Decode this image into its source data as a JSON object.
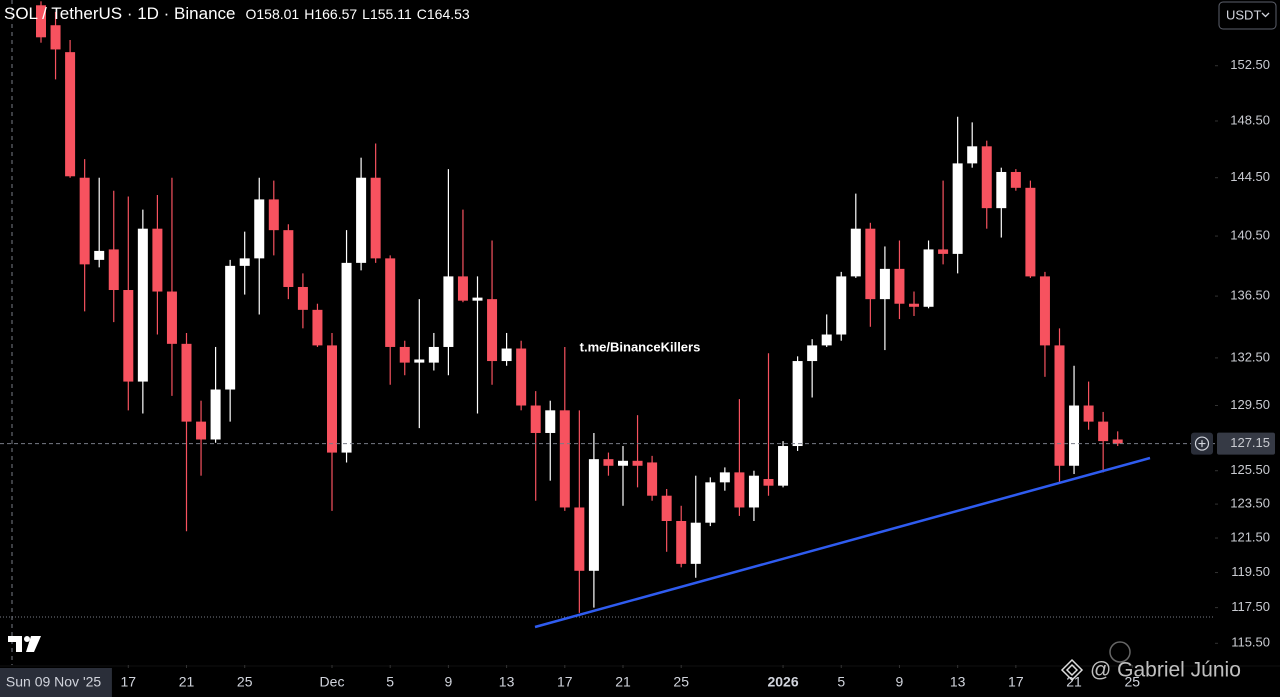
{
  "chart_data": {
    "type": "candlestick",
    "title": "SOL / TetherUS · 1D · Binance",
    "ohlc_legend": [
      {
        "label": "O",
        "value": "158.01"
      },
      {
        "label": "H",
        "value": "166.57"
      },
      {
        "label": "L",
        "value": "155.11"
      },
      {
        "label": "C",
        "value": "164.53"
      }
    ],
    "currency": "USDT",
    "watermark": "t.me/BinanceKillers",
    "credit": "@ Gabriel Júnio",
    "log_scale": true,
    "up_color": "#ffffff",
    "down_color": "#f7525f",
    "x": [
      "2025-11-11",
      "2025-11-12",
      "2025-11-13",
      "2025-11-14",
      "2025-11-15",
      "2025-11-16",
      "2025-11-17",
      "2025-11-18",
      "2025-11-19",
      "2025-11-20",
      "2025-11-21",
      "2025-11-22",
      "2025-11-23",
      "2025-11-24",
      "2025-11-25",
      "2025-11-26",
      "2025-11-27",
      "2025-11-28",
      "2025-11-29",
      "2025-11-30",
      "2025-12-01",
      "2025-12-02",
      "2025-12-03",
      "2025-12-04",
      "2025-12-05",
      "2025-12-06",
      "2025-12-07",
      "2025-12-08",
      "2025-12-09",
      "2025-12-10",
      "2025-12-11",
      "2025-12-12",
      "2025-12-13",
      "2025-12-14",
      "2025-12-15",
      "2025-12-16",
      "2025-12-17",
      "2025-12-18",
      "2025-12-19",
      "2025-12-20",
      "2025-12-21",
      "2025-12-22",
      "2025-12-23",
      "2025-12-24",
      "2025-12-25",
      "2025-12-26",
      "2025-12-27",
      "2025-12-28",
      "2025-12-29",
      "2025-12-30",
      "2025-12-31",
      "2026-01-01",
      "2026-01-02",
      "2026-01-03",
      "2026-01-04",
      "2026-01-05",
      "2026-01-06",
      "2026-01-07",
      "2026-01-08",
      "2026-01-09",
      "2026-01-10",
      "2026-01-11",
      "2026-01-12",
      "2026-01-13",
      "2026-01-14",
      "2026-01-15",
      "2026-01-16",
      "2026-01-17",
      "2026-01-18",
      "2026-01-19",
      "2026-01-20",
      "2026-01-21",
      "2026-01-22",
      "2026-01-23",
      "2026-01-24"
    ],
    "open": [
      157,
      155.5,
      153.5,
      144.5,
      138.9,
      139.6,
      136.9,
      131.0,
      141,
      136.8,
      133.4,
      128.5,
      127.4,
      130.5,
      138.5,
      139,
      143,
      140.9,
      137.1,
      135.6,
      133.3,
      126.6,
      138.7,
      144.5,
      139,
      133.2,
      132.2,
      132.2,
      133.2,
      137.8,
      136.2,
      136.3,
      132.3,
      133.1,
      129.5,
      127.8,
      129.2,
      123.3,
      119.6,
      126.2,
      125.8,
      126.1,
      126,
      124,
      122.5,
      120,
      122.4,
      124.8,
      125.4,
      123.3,
      125.0,
      124.6,
      127,
      132.3,
      133.3,
      134,
      137.8,
      141,
      136.3,
      138.3,
      136,
      135.8,
      139.6,
      139.3,
      145.5,
      146.7,
      142.4,
      144.9,
      143.8,
      137.8,
      133.3,
      125.8,
      129.5,
      128.5,
      127.4
    ],
    "high": [
      157.3,
      156.5,
      154.4,
      145.8,
      144.5,
      143.6,
      143.2,
      142.3,
      143.3,
      144.5,
      134.1,
      129.8,
      133.2,
      138.9,
      140.8,
      144.5,
      144.3,
      141.3,
      138,
      136,
      134.1,
      140.9,
      145.9,
      146.9,
      139.2,
      133.6,
      136.3,
      134.1,
      145.1,
      142.3,
      137.8,
      140.2,
      134.1,
      133.6,
      130.4,
      129.8,
      133.2,
      129.2,
      127.8,
      126.6,
      127,
      128.9,
      126.4,
      124.4,
      123.4,
      125.2,
      125.1,
      125.7,
      129.9,
      125.5,
      132.8,
      127.3,
      132.6,
      133.7,
      135.3,
      138.1,
      143.4,
      141.4,
      139.8,
      140.2,
      136.8,
      140.2,
      144.3,
      148.8,
      148.4,
      147.1,
      145.2,
      145.1,
      144.3,
      138.1,
      134.4,
      132.0,
      131.0,
      129.1,
      127.9
    ],
    "low": [
      154.2,
      151.5,
      144.5,
      135.5,
      138.4,
      134.8,
      129.2,
      129.0,
      134,
      130.1,
      121.9,
      125.2,
      127.2,
      128.5,
      136.6,
      135.3,
      139.2,
      136.3,
      134.4,
      133.2,
      123.1,
      126.0,
      138.2,
      138.7,
      130.8,
      131.4,
      128.1,
      131.7,
      131.4,
      136.1,
      129,
      130.8,
      132.0,
      129.2,
      123.7,
      124.9,
      123.1,
      117.2,
      117.5,
      125.2,
      123.4,
      124.5,
      123.7,
      120.7,
      119.8,
      119.2,
      122.2,
      124.3,
      122.8,
      122.5,
      124.0,
      124.5,
      126.7,
      130.0,
      133.2,
      133.6,
      137.7,
      134.5,
      133,
      135,
      135.2,
      135.7,
      138.6,
      138,
      145.2,
      141.0,
      140.4,
      143.6,
      137.7,
      131.3,
      124.8,
      125.3,
      128.0,
      125.4,
      127.0
    ],
    "close": [
      154.6,
      153.7,
      144.6,
      138.6,
      139.5,
      136.9,
      131.0,
      141.0,
      136.8,
      133.4,
      128.5,
      127.4,
      130.5,
      138.5,
      139.0,
      143.0,
      140.9,
      137.1,
      135.6,
      133.3,
      126.6,
      138.7,
      144.5,
      139,
      133.2,
      132.2,
      132.4,
      133.2,
      137.8,
      136.2,
      136.4,
      132.3,
      133.1,
      129.5,
      127.8,
      129.2,
      123.3,
      119.6,
      126.2,
      125.8,
      126.1,
      125.8,
      124,
      122.5,
      120,
      122.4,
      124.8,
      125.4,
      123.3,
      125.2,
      124.6,
      127.0,
      132.3,
      133.3,
      134.0,
      137.8,
      141.0,
      136.3,
      138.3,
      136,
      135.8,
      139.6,
      139.3,
      145.5,
      146.7,
      142.4,
      144.9,
      143.8,
      137.8,
      133.3,
      125.8,
      129.5,
      128.5,
      127.3,
      127.15
    ],
    "last_price": 127.15,
    "ylim": [
      114.3,
      157.4
    ],
    "yticks": [
      {
        "value": 152.5,
        "label": "152.50"
      },
      {
        "value": 148.5,
        "label": "148.50"
      },
      {
        "value": 144.5,
        "label": "144.50"
      },
      {
        "value": 140.5,
        "label": "140.50"
      },
      {
        "value": 136.5,
        "label": "136.50"
      },
      {
        "value": 132.5,
        "label": "132.50"
      },
      {
        "value": 129.5,
        "label": "129.50"
      },
      {
        "value": 125.5,
        "label": "125.50"
      },
      {
        "value": 123.5,
        "label": "123.50"
      },
      {
        "value": 121.5,
        "label": "121.50"
      },
      {
        "value": 119.5,
        "label": "119.50"
      },
      {
        "value": 117.5,
        "label": "117.50"
      },
      {
        "value": 115.5,
        "label": "115.50"
      }
    ],
    "xticks": [
      {
        "value": "2025-11-17",
        "label": "17"
      },
      {
        "value": "2025-11-21",
        "label": "21"
      },
      {
        "value": "2025-11-25",
        "label": "25"
      },
      {
        "value": "2025-12-01",
        "label": "Dec"
      },
      {
        "value": "2025-12-05",
        "label": "5"
      },
      {
        "value": "2025-12-09",
        "label": "9"
      },
      {
        "value": "2025-12-13",
        "label": "13"
      },
      {
        "value": "2025-12-17",
        "label": "17"
      },
      {
        "value": "2025-12-21",
        "label": "21"
      },
      {
        "value": "2025-12-25",
        "label": "25"
      },
      {
        "value": "2026-01-01",
        "label": "2026"
      },
      {
        "value": "2026-01-05",
        "label": "5"
      },
      {
        "value": "2026-01-09",
        "label": "9"
      },
      {
        "value": "2026-01-13",
        "label": "13"
      },
      {
        "value": "2026-01-17",
        "label": "17"
      },
      {
        "value": "2026-01-21",
        "label": "21"
      },
      {
        "value": "2026-01-25",
        "label": "25"
      }
    ],
    "cursor_date": {
      "value": "2025-11-09",
      "label": "Sun 09 Nov '25"
    }
  }
}
